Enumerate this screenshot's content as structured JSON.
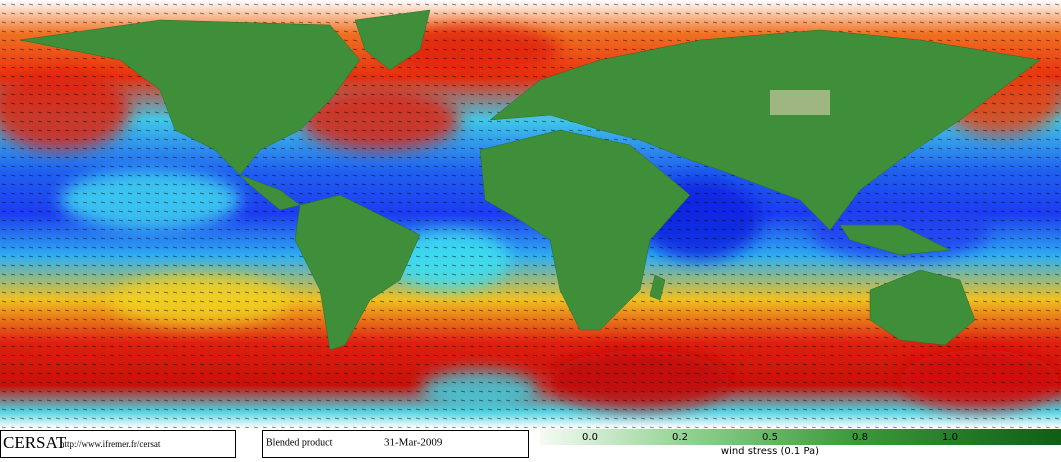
{
  "logo": "CERSAT",
  "url": "http://www.ifremer.fr/cersat",
  "product": "Blended product",
  "date": "31-Mar-2009",
  "colorbar": {
    "ticks": [
      "0.0",
      "0.2",
      "0.5",
      "0.8",
      "1.0"
    ],
    "label": "wind stress (0.1 Pa)"
  }
}
